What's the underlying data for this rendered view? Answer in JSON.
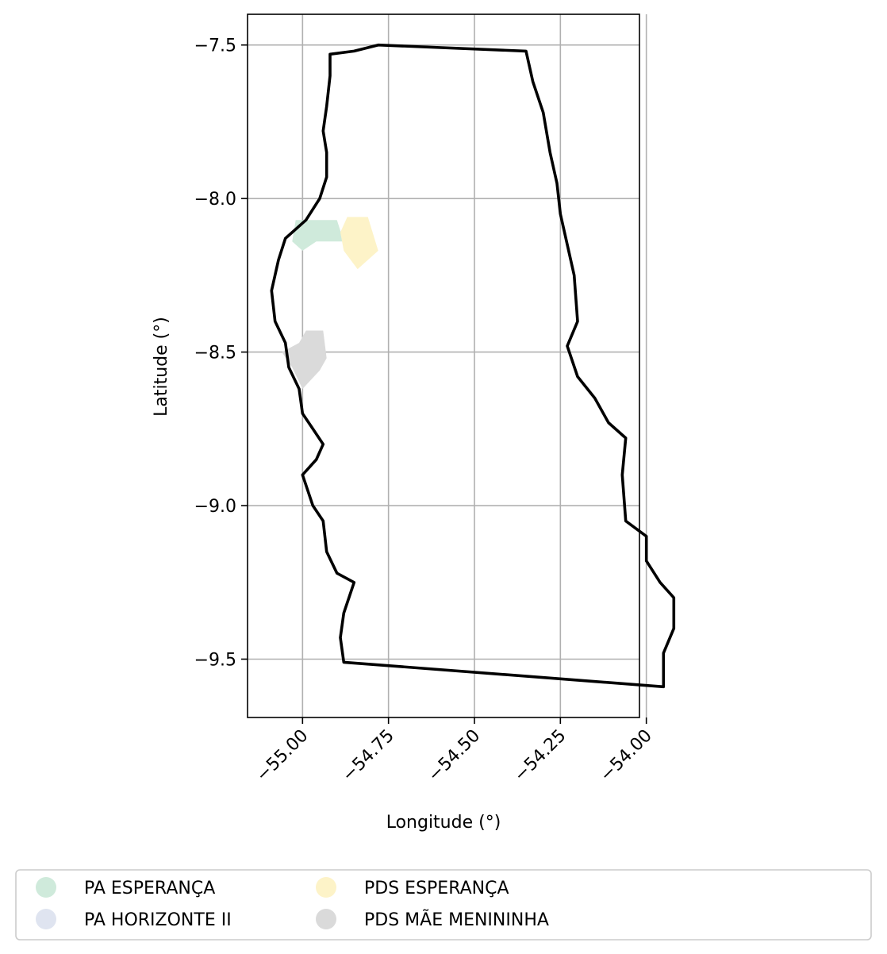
{
  "chart_data": {
    "type": "map",
    "xlabel": "Longitude (°)",
    "ylabel": "Latitude (°)",
    "xlim": [
      -55.16,
      -54.02
    ],
    "ylim": [
      -9.69,
      -7.4
    ],
    "x_ticks": [
      -55.0,
      -54.75,
      -54.5,
      -54.25,
      -54.0
    ],
    "x_tick_labels": [
      "−55.00",
      "−54.75",
      "−54.50",
      "−54.25",
      "−54.00"
    ],
    "y_ticks": [
      -7.5,
      -8.0,
      -8.5,
      -9.0,
      -9.5
    ],
    "y_tick_labels": [
      "−7.5",
      "−8.0",
      "−8.5",
      "−9.0",
      "−9.5"
    ],
    "grid": true,
    "legend_placement": "bottom-center",
    "legend_columns": 3,
    "boundary": [
      [
        -54.78,
        -7.5
      ],
      [
        -54.35,
        -7.52
      ],
      [
        -54.33,
        -7.62
      ],
      [
        -54.3,
        -7.72
      ],
      [
        -54.28,
        -7.85
      ],
      [
        -54.26,
        -7.95
      ],
      [
        -54.25,
        -8.05
      ],
      [
        -54.23,
        -8.15
      ],
      [
        -54.21,
        -8.25
      ],
      [
        -54.2,
        -8.4
      ],
      [
        -54.23,
        -8.48
      ],
      [
        -54.2,
        -8.58
      ],
      [
        -54.15,
        -8.65
      ],
      [
        -54.11,
        -8.73
      ],
      [
        -54.06,
        -8.78
      ],
      [
        -54.07,
        -8.9
      ],
      [
        -54.06,
        -9.05
      ],
      [
        -54.0,
        -9.1
      ],
      [
        -54.0,
        -9.18
      ],
      [
        -53.96,
        -9.25
      ],
      [
        -53.92,
        -9.3
      ],
      [
        -53.92,
        -9.4
      ],
      [
        -53.95,
        -9.48
      ],
      [
        -53.95,
        -9.59
      ],
      [
        -54.88,
        -9.51
      ],
      [
        -54.89,
        -9.43
      ],
      [
        -54.88,
        -9.35
      ],
      [
        -54.85,
        -9.25
      ],
      [
        -54.9,
        -9.22
      ],
      [
        -54.93,
        -9.15
      ],
      [
        -54.94,
        -9.05
      ],
      [
        -54.97,
        -9.0
      ],
      [
        -55.0,
        -8.9
      ],
      [
        -54.96,
        -8.85
      ],
      [
        -54.94,
        -8.8
      ],
      [
        -54.97,
        -8.75
      ],
      [
        -55.0,
        -8.7
      ],
      [
        -55.01,
        -8.62
      ],
      [
        -55.04,
        -8.55
      ],
      [
        -55.05,
        -8.47
      ],
      [
        -55.08,
        -8.4
      ],
      [
        -55.09,
        -8.3
      ],
      [
        -55.07,
        -8.2
      ],
      [
        -55.05,
        -8.13
      ],
      [
        -55.02,
        -8.1
      ],
      [
        -54.99,
        -8.07
      ],
      [
        -54.95,
        -8.0
      ],
      [
        -54.93,
        -7.93
      ],
      [
        -54.93,
        -7.85
      ],
      [
        -54.94,
        -7.78
      ],
      [
        -54.93,
        -7.7
      ],
      [
        -54.92,
        -7.6
      ],
      [
        -54.92,
        -7.53
      ],
      [
        -54.85,
        -7.52
      ],
      [
        -54.78,
        -7.5
      ]
    ],
    "series": [
      {
        "name": "PA ESPERANÇA",
        "color": "#cfeadb",
        "polygon": [
          [
            -55.02,
            -8.07
          ],
          [
            -54.9,
            -8.07
          ],
          [
            -54.88,
            -8.14
          ],
          [
            -54.96,
            -8.14
          ],
          [
            -55.0,
            -8.17
          ],
          [
            -55.03,
            -8.14
          ]
        ]
      },
      {
        "name": "PA HORIZONTE II",
        "color": "#dfe4f0",
        "polygon": []
      },
      {
        "name": "PDS ESPERANÇA",
        "color": "#fdf3c8",
        "polygon": [
          [
            -54.87,
            -8.06
          ],
          [
            -54.81,
            -8.06
          ],
          [
            -54.78,
            -8.17
          ],
          [
            -54.84,
            -8.23
          ],
          [
            -54.88,
            -8.17
          ],
          [
            -54.89,
            -8.11
          ]
        ]
      },
      {
        "name": "PDS MÃE MENININHA",
        "color": "#dadada",
        "polygon": [
          [
            -54.99,
            -8.43
          ],
          [
            -54.94,
            -8.43
          ],
          [
            -54.93,
            -8.52
          ],
          [
            -54.95,
            -8.56
          ],
          [
            -55.0,
            -8.62
          ],
          [
            -55.03,
            -8.55
          ],
          [
            -55.06,
            -8.5
          ],
          [
            -55.01,
            -8.47
          ]
        ]
      }
    ]
  }
}
